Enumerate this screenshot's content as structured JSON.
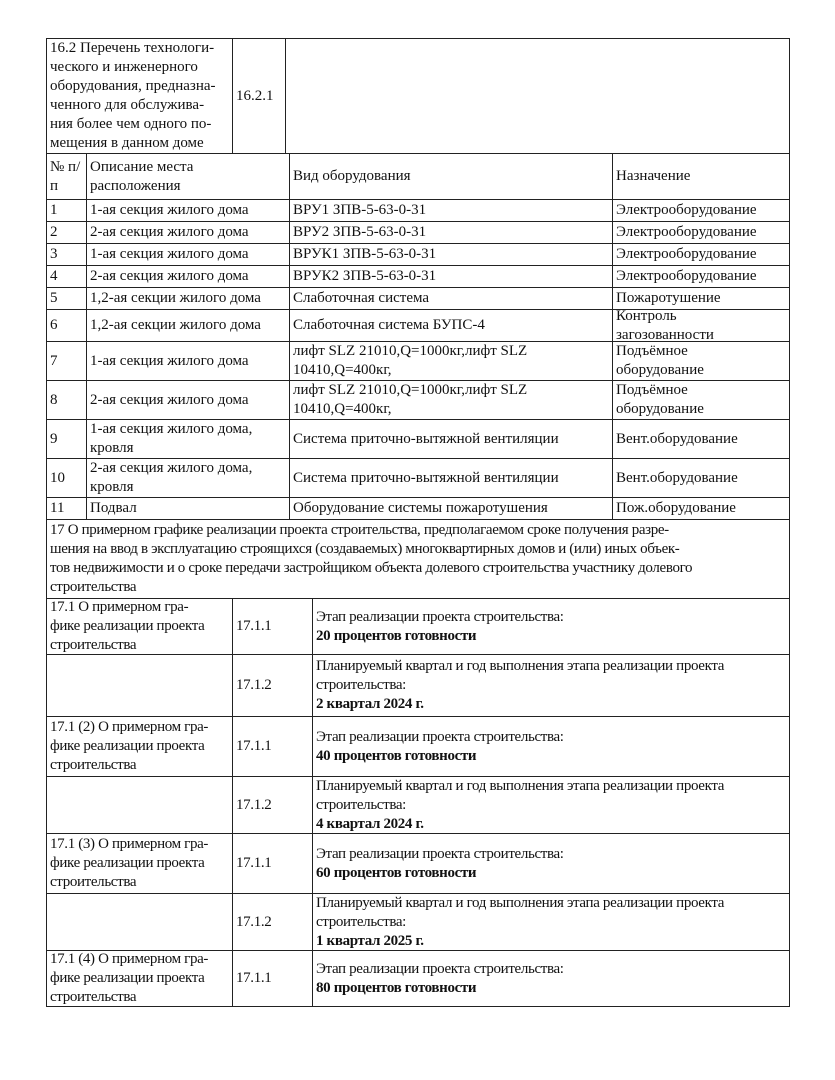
{
  "section_16_2": {
    "title": "16.2 Перечень технологи-\nческого и инженерного\nоборудования, предназна-\nченного для обслужива-\nния более чем одного по-\nмещения в данном доме",
    "code": "16.2.1",
    "value": ""
  },
  "equipment_table": {
    "headers": [
      "№ п/\nп",
      "Описание места\nрасположения",
      "Вид оборудования",
      "Назначение"
    ],
    "rows": [
      [
        "1",
        "1-ая секция жилого дома",
        "ВРУ1 ЗПВ-5-63-0-31",
        "Электрооборудование"
      ],
      [
        "2",
        "2-ая секция жилого дома",
        "ВРУ2 ЗПВ-5-63-0-31",
        "Электрооборудование"
      ],
      [
        "3",
        "1-ая секция жилого дома",
        "ВРУК1 ЗПВ-5-63-0-31",
        "Электрооборудование"
      ],
      [
        "4",
        "2-ая секция жилого дома",
        "ВРУК2 ЗПВ-5-63-0-31",
        "Электрооборудование"
      ],
      [
        "5",
        "1,2-ая секции жилого дома",
        "Слаботочная система",
        "Пожаротушение"
      ],
      [
        "6",
        "1,2-ая секции жилого дома",
        "Слаботочная система БУПС-4",
        "Контроль\nзагозованности"
      ],
      [
        "7",
        "1-ая секция жилого дома",
        "лифт SLZ 21010,Q=1000кг,лифт SLZ\n10410,Q=400кг,",
        "Подъёмное\nоборудование"
      ],
      [
        "8",
        "2-ая секция жилого дома",
        "лифт SLZ 21010,Q=1000кг,лифт SLZ\n10410,Q=400кг,",
        "Подъёмное\nоборудование"
      ],
      [
        "9",
        "1-ая секция жилого дома,\nкровля",
        "Система приточно-вытяжной вентиляции",
        "Вент.оборудование"
      ],
      [
        "10",
        "2-ая секция жилого дома,\nкровля",
        "Система приточно-вытяжной вентиляции",
        "Вент.оборудование"
      ],
      [
        "11",
        "Подвал",
        "Оборудование системы пожаротушения",
        "Пож.оборудование"
      ]
    ]
  },
  "section_17": {
    "title": "17 О примерном графике реализации проекта строительства, предполагаемом сроке получения разре-\nшения на ввод в эксплуатацию строящихся (создаваемых) многоквартирных домов и (или) иных объек-\nтов недвижимости и о сроке передачи застройщиком объекта долевого строительства участнику долевого\nстроительства",
    "rows": [
      {
        "label": "17.1 О примерном гра-\nфике реализации проекта\nстроительства",
        "code": "17.1.1",
        "text": "Этап реализации проекта строительства:",
        "value": "20 процентов готовности"
      },
      {
        "label": "",
        "code": "17.1.2",
        "text": "Планируемый квартал и год выполнения этапа реализации проекта\nстроительства:",
        "value": "2 квартал 2024 г."
      },
      {
        "label": "17.1 (2) О примерном гра-\nфике реализации проекта\nстроительства",
        "code": "17.1.1",
        "text": "Этап реализации проекта строительства:",
        "value": "40 процентов готовности"
      },
      {
        "label": "",
        "code": "17.1.2",
        "text": "Планируемый квартал и год выполнения этапа реализации проекта\nстроительства:",
        "value": "4 квартал 2024 г."
      },
      {
        "label": "17.1 (3) О примерном гра-\nфике реализации проекта\nстроительства",
        "code": "17.1.1",
        "text": "Этап реализации проекта строительства:",
        "value": "60 процентов готовности"
      },
      {
        "label": "",
        "code": "17.1.2",
        "text": "Планируемый квартал и год выполнения этапа реализации проекта\nстроительства:",
        "value": "1 квартал 2025 г."
      },
      {
        "label": "17.1 (4) О примерном гра-\nфике реализации проекта\nстроительства",
        "code": "17.1.1",
        "text": "Этап реализации проекта строительства:",
        "value": "80 процентов готовности"
      }
    ]
  }
}
